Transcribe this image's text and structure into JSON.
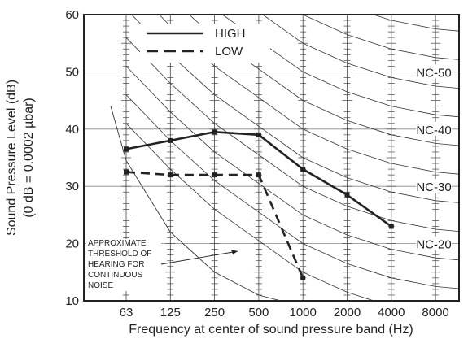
{
  "chart_data": {
    "type": "line",
    "xlabel": "Frequency at center of sound pressure band (Hz)",
    "ylabel": "Sound Pressure Level (dB)",
    "ylabel2": "(0 dB = 0.0002 µbar)",
    "categories": [
      "63",
      "125",
      "250",
      "500",
      "1000",
      "2000",
      "4000",
      "8000"
    ],
    "ylim": [
      10,
      60
    ],
    "yticks": [
      "10",
      "20",
      "30",
      "40",
      "50",
      "60"
    ],
    "grid": true,
    "legend_position": "top",
    "series": [
      {
        "name": "HIGH",
        "style": "solid",
        "color": "#222222",
        "x": [
          "63",
          "125",
          "250",
          "500",
          "1000",
          "2000",
          "4000"
        ],
        "values": [
          36.5,
          38,
          39.5,
          39,
          33,
          28.5,
          23
        ]
      },
      {
        "name": "LOW",
        "style": "dashed",
        "color": "#222222",
        "x": [
          "63",
          "125",
          "250",
          "500",
          "1000"
        ],
        "values": [
          32.5,
          32,
          32,
          32,
          14
        ]
      }
    ],
    "nc_curves": [
      {
        "label": "NC-50",
        "level": 50
      },
      {
        "label": "NC-40",
        "level": 40
      },
      {
        "label": "NC-30",
        "level": 30
      },
      {
        "label": "NC-20",
        "level": 20
      }
    ],
    "annotation": {
      "lines": [
        "APPROXIMATE",
        "THRESHOLD OF",
        "HEARING FOR",
        "CONTINUOUS",
        "NOISE"
      ]
    }
  }
}
